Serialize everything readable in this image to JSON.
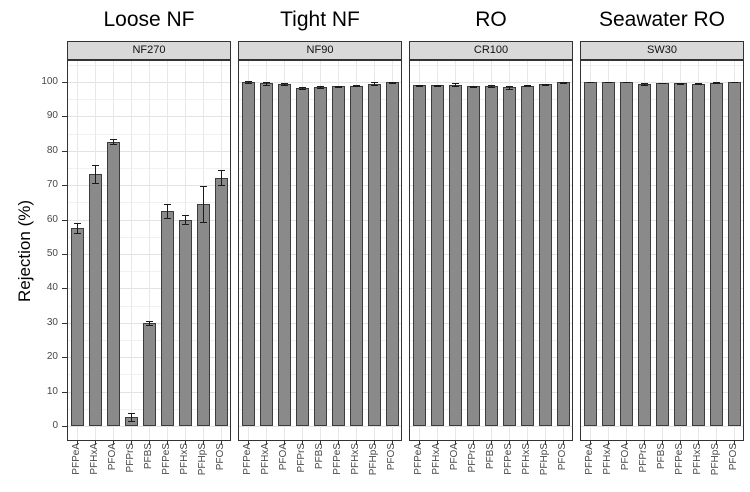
{
  "chart_data": {
    "type": "bar",
    "title": "",
    "ylabel": "Rejection (%)",
    "xlabel": "",
    "ylim": [
      0,
      100
    ],
    "yticks": [
      0,
      10,
      20,
      30,
      40,
      50,
      60,
      70,
      80,
      90,
      100
    ],
    "grid": "on",
    "legend": "none",
    "categories": [
      "PFPeA",
      "PFHxA",
      "PFOA",
      "PFPrS",
      "PFBS",
      "PFPeS",
      "PFHxS",
      "PFHpS",
      "PFOS"
    ],
    "facets": [
      {
        "group": "Loose NF",
        "membrane": "NF270",
        "values": [
          57.5,
          73.3,
          82.7,
          2.6,
          30.0,
          62.5,
          60.0,
          64.5,
          72.2
        ],
        "errors": [
          1.5,
          2.6,
          0.8,
          1.2,
          0.5,
          2.0,
          1.4,
          5.2,
          2.1
        ]
      },
      {
        "group": "Tight NF",
        "membrane": "NF90",
        "values": [
          100.0,
          99.6,
          99.4,
          98.3,
          98.6,
          98.7,
          98.9,
          99.5,
          99.9
        ],
        "errors": [
          0.15,
          0.5,
          0.4,
          0.3,
          0.2,
          0.2,
          0.2,
          0.45,
          0.15
        ]
      },
      {
        "group": "RO",
        "membrane": "CR100",
        "values": [
          99.0,
          99.1,
          99.2,
          98.7,
          98.8,
          98.5,
          98.9,
          99.3,
          99.9
        ],
        "errors": [
          0.15,
          0.15,
          0.5,
          0.2,
          0.35,
          0.45,
          0.15,
          0.15,
          0.1
        ]
      },
      {
        "group": "Seawater RO",
        "membrane": "SW30",
        "values": [
          100.0,
          100.0,
          100.0,
          99.4,
          99.7,
          99.6,
          99.5,
          99.8,
          100.0
        ],
        "errors": [
          0.1,
          0.1,
          0.1,
          0.2,
          0.1,
          0.1,
          0.1,
          0.1,
          0.1
        ]
      }
    ],
    "colors": {
      "bar_fill": "#8a8a8a",
      "bar_stroke": "#3c3c3c",
      "strip_fill": "#d9d9d9",
      "panel_border": "#333333",
      "grid_major": "#e3e3e3",
      "grid_minor": "#f1f1f1",
      "axis_text": "#474747",
      "error_bar": "#1a1a1a"
    }
  }
}
